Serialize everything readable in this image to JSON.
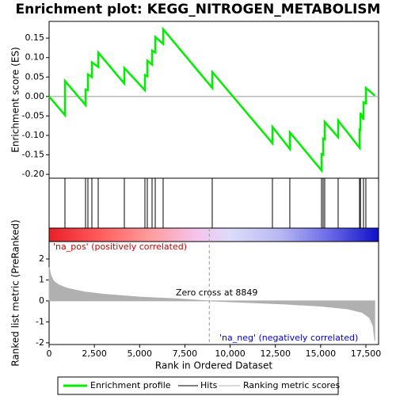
{
  "chart_data": {
    "type": "gsea",
    "title": "Enrichment plot: KEGG_NITROGEN_METABOLISM",
    "xlabel": "Rank in Ordered Dataset",
    "xlim": [
      0,
      18200
    ],
    "xticks": [
      0,
      {
        "value": 2500,
        "label": "2,500"
      },
      {
        "value": 5000,
        "label": "5,000"
      },
      {
        "value": 7500,
        "label": "7,500"
      },
      {
        "value": 10000,
        "label": "10,000"
      },
      {
        "value": 12500,
        "label": "12,500"
      },
      {
        "value": 15000,
        "label": "15,000"
      },
      {
        "value": 17500,
        "label": "17,500"
      }
    ],
    "es": {
      "ylabel": "Enrichment score (ES)",
      "ylim": [
        -0.21,
        0.193
      ],
      "color": "#00ee00",
      "yticks": [
        0.15,
        {
          "value": 0.1,
          "label": "0.10"
        },
        0.05,
        {
          "value": 0,
          "label": "0.00"
        },
        -0.05,
        {
          "value": -0.1,
          "label": "-0.10"
        },
        -0.15,
        {
          "value": -0.2,
          "label": "-0.20"
        }
      ],
      "x": [
        0,
        875,
        875,
        2012,
        2012,
        2143,
        2143,
        2362,
        2362,
        2712,
        2712,
        4156,
        4156,
        5293,
        5293,
        5424,
        5424,
        5687,
        5687,
        5862,
        5862,
        6299,
        6299,
        9011,
        9011,
        12336,
        12336,
        13298,
        13298,
        15048,
        15048,
        15136,
        15136,
        15223,
        15223,
        15967,
        15967,
        17148,
        17148,
        17200,
        17200,
        17367,
        17367,
        17498,
        17498,
        18000
      ],
      "values": [
        0,
        -0.048,
        0.04,
        -0.022,
        0.018,
        0.016,
        0.057,
        0.05,
        0.088,
        0.076,
        0.113,
        0.033,
        0.073,
        0.016,
        0.055,
        0.052,
        0.092,
        0.082,
        0.118,
        0.113,
        0.153,
        0.135,
        0.173,
        0.022,
        0.063,
        -0.12,
        -0.078,
        -0.135,
        -0.092,
        -0.19,
        -0.148,
        -0.15,
        -0.108,
        -0.11,
        -0.065,
        -0.105,
        -0.062,
        -0.132,
        -0.085,
        -0.086,
        -0.042,
        -0.06,
        -0.015,
        -0.018,
        0.022,
        0.002
      ]
    },
    "hits": {
      "x": [
        875,
        2012,
        2143,
        2362,
        2712,
        4156,
        5293,
        5424,
        5687,
        5862,
        6299,
        9011,
        12336,
        13298,
        15048,
        15136,
        15223,
        15967,
        17148,
        17200,
        17367,
        17498
      ]
    },
    "metric": {
      "ylabel": "Ranked list metric (PreRanked)",
      "ylim": [
        -2.08,
        2.83
      ],
      "yticks": [
        2,
        1,
        0,
        -1,
        -2
      ],
      "color": "#b0b0b0",
      "x": [
        0,
        100,
        250,
        500,
        1000,
        2000,
        3000,
        5000,
        7000,
        8849,
        11000,
        13000,
        15000,
        16500,
        17300,
        17700,
        17900,
        17990
      ],
      "values": [
        1.6,
        1.2,
        0.95,
        0.78,
        0.6,
        0.42,
        0.32,
        0.18,
        0.1,
        0,
        -0.08,
        -0.15,
        -0.25,
        -0.38,
        -0.55,
        -0.8,
        -1.2,
        -1.9
      ]
    },
    "zero_cross": 8849,
    "zero_cross_label": "Zero cross at 8849",
    "pos_label": "'na_pos' (positively correlated)",
    "neg_label": "'na_neg' (negatively correlated)",
    "legend": [
      "Enrichment profile",
      "Hits",
      "Ranking metric scores"
    ]
  }
}
